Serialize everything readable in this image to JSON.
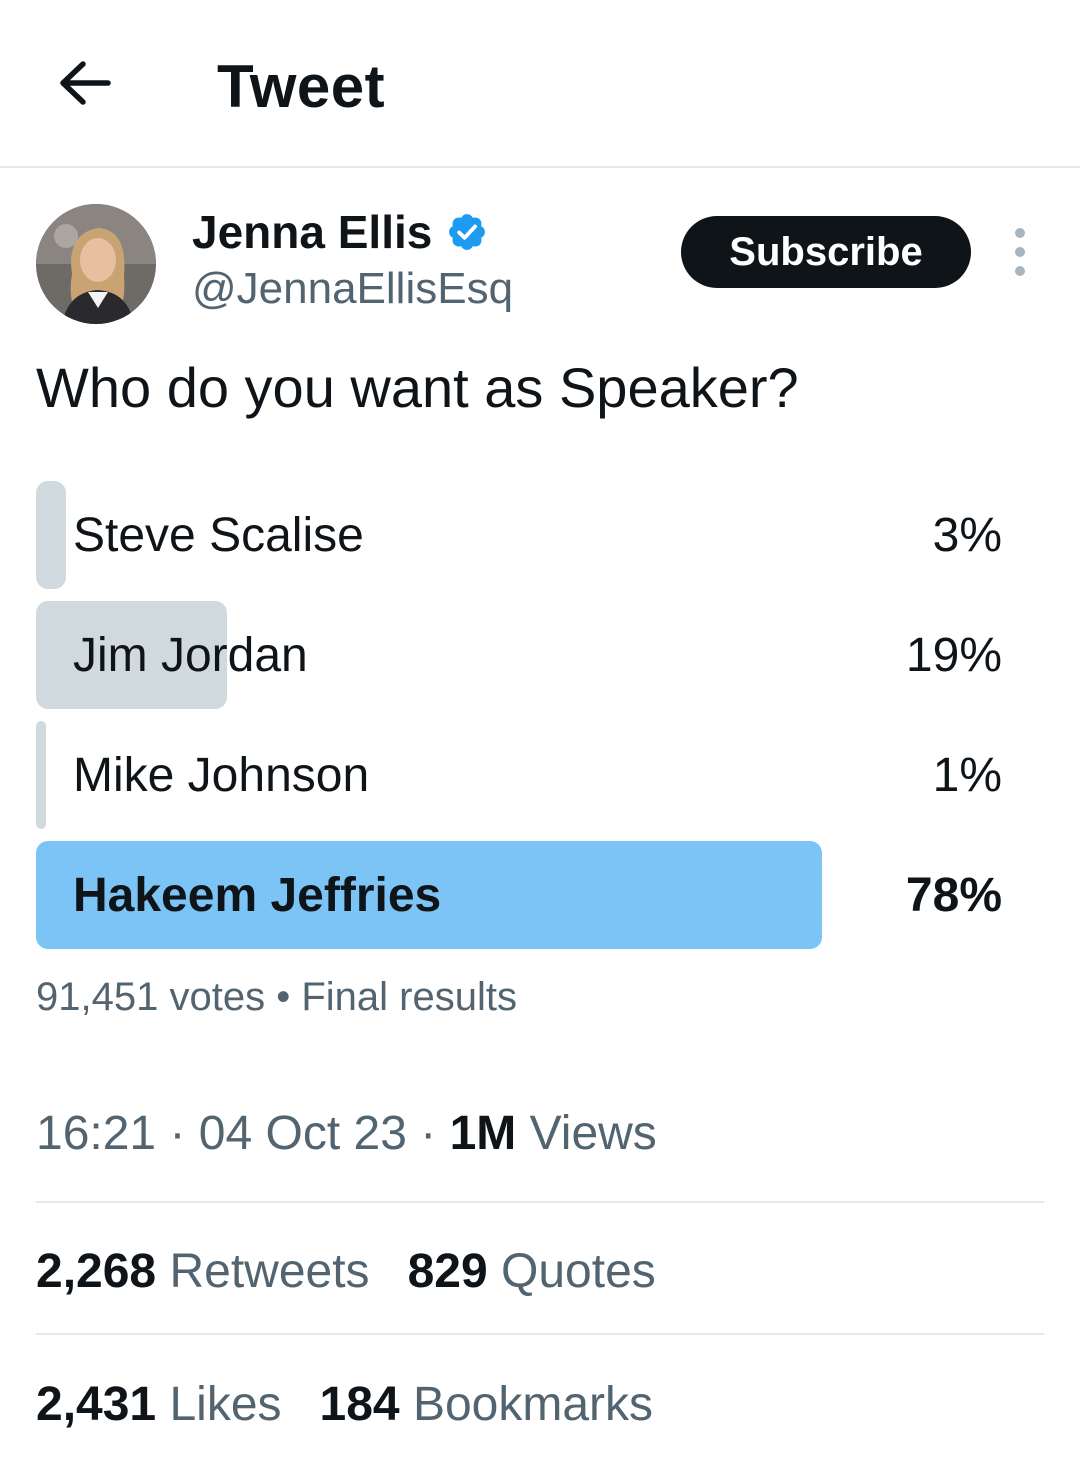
{
  "header": {
    "title": "Tweet",
    "back_icon": "arrow-left-icon"
  },
  "author": {
    "name": "Jenna Ellis",
    "handle": "@JennaEllisEsq",
    "verified_icon": "verified-badge-icon",
    "verified_color": "#1d9bf0"
  },
  "actions": {
    "subscribe_label": "Subscribe",
    "more_icon": "more-vertical-icon"
  },
  "tweet": {
    "text": "Who do you want as Speaker?"
  },
  "poll": {
    "options": [
      {
        "label": "Steve Scalise",
        "percent_text": "3%",
        "percent": 3,
        "winner": false
      },
      {
        "label": "Jim Jordan",
        "percent_text": "19%",
        "percent": 19,
        "winner": false
      },
      {
        "label": "Mike Johnson",
        "percent_text": "1%",
        "percent": 1,
        "winner": false
      },
      {
        "label": "Hakeem Jeffries",
        "percent_text": "78%",
        "percent": 78,
        "winner": true
      }
    ],
    "votes": "91,451 votes",
    "separator": "•",
    "status": "Final results"
  },
  "meta": {
    "time": "16:21",
    "date": "04 Oct 23",
    "views_count": "1M",
    "views_label": "Views",
    "dot": "·"
  },
  "stats_row1": [
    {
      "count": "2,268",
      "label": "Retweets"
    },
    {
      "count": "829",
      "label": "Quotes"
    }
  ],
  "stats_row2": [
    {
      "count": "2,431",
      "label": "Likes"
    },
    {
      "count": "184",
      "label": "Bookmarks"
    }
  ],
  "colors": {
    "text": "#0f1419",
    "secondary": "#536471",
    "poll_bar": "#cfd9de",
    "poll_winner": "#7cc4f5",
    "button": "#0f1419"
  }
}
